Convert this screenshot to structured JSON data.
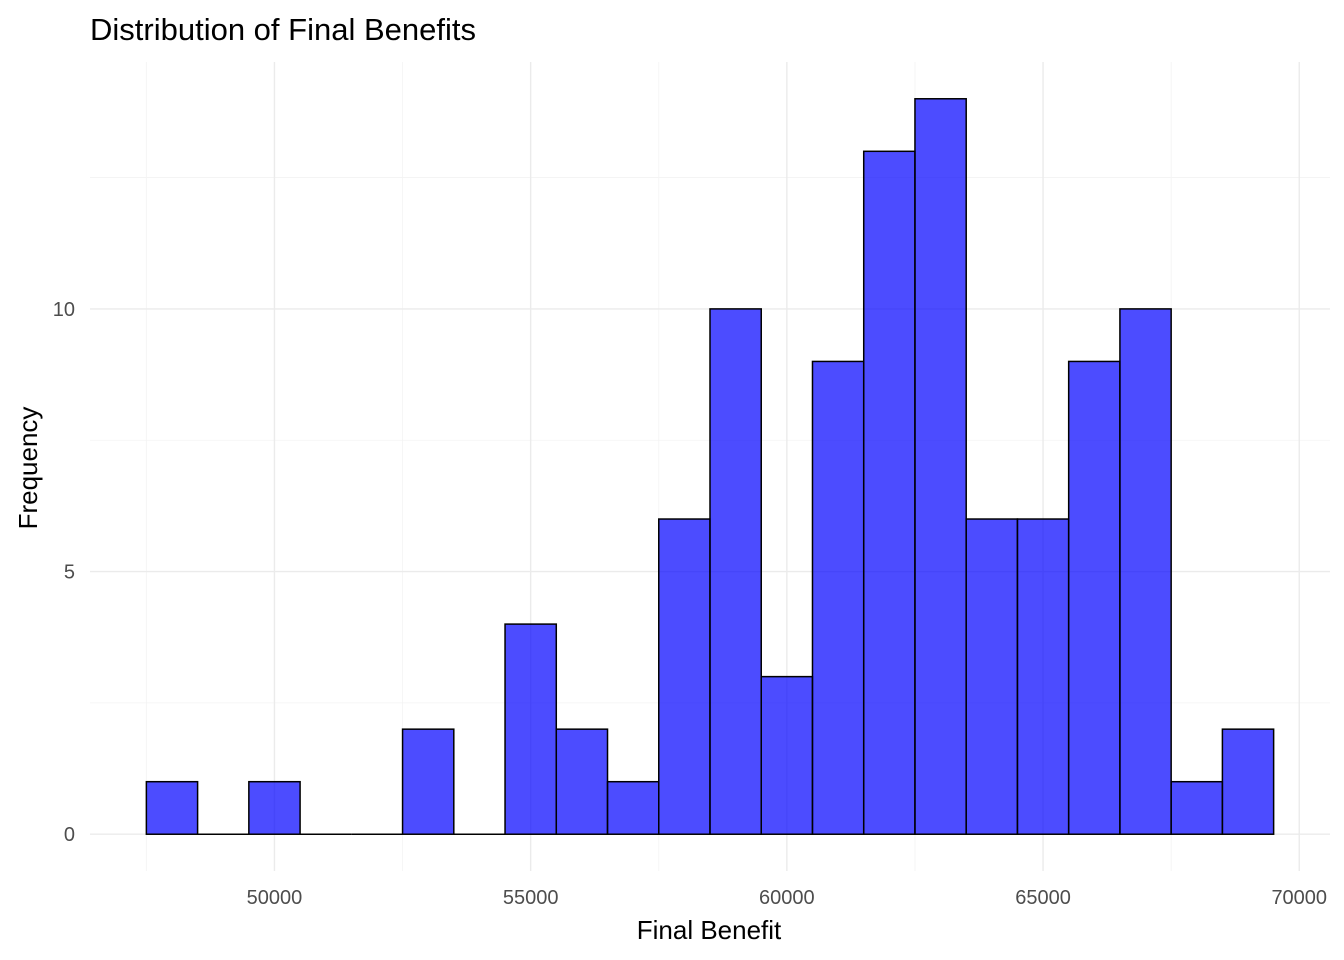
{
  "chart_data": {
    "type": "bar",
    "title": "Distribution of Final Benefits",
    "xlabel": "Final Benefit",
    "ylabel": "Frequency",
    "bin_width": 1000,
    "bins": [
      {
        "start": 47500,
        "end": 48500,
        "count": 1
      },
      {
        "start": 48500,
        "end": 49500,
        "count": 0
      },
      {
        "start": 49500,
        "end": 50500,
        "count": 1
      },
      {
        "start": 50500,
        "end": 51500,
        "count": 0
      },
      {
        "start": 51500,
        "end": 52500,
        "count": 0
      },
      {
        "start": 52500,
        "end": 53500,
        "count": 2
      },
      {
        "start": 53500,
        "end": 54500,
        "count": 0
      },
      {
        "start": 54500,
        "end": 55500,
        "count": 4
      },
      {
        "start": 55500,
        "end": 56500,
        "count": 2
      },
      {
        "start": 56500,
        "end": 57500,
        "count": 1
      },
      {
        "start": 57500,
        "end": 58500,
        "count": 6
      },
      {
        "start": 58500,
        "end": 59500,
        "count": 10
      },
      {
        "start": 59500,
        "end": 60500,
        "count": 3
      },
      {
        "start": 60500,
        "end": 61500,
        "count": 9
      },
      {
        "start": 61500,
        "end": 62500,
        "count": 13
      },
      {
        "start": 62500,
        "end": 63500,
        "count": 14
      },
      {
        "start": 63500,
        "end": 64500,
        "count": 6
      },
      {
        "start": 64500,
        "end": 65500,
        "count": 6
      },
      {
        "start": 65500,
        "end": 66500,
        "count": 9
      },
      {
        "start": 66500,
        "end": 67500,
        "count": 10
      },
      {
        "start": 67500,
        "end": 68500,
        "count": 1
      },
      {
        "start": 68500,
        "end": 69500,
        "count": 2
      }
    ],
    "xlim": [
      46400,
      70600
    ],
    "ylim": [
      -0.7,
      14.7
    ],
    "x_ticks": [
      50000,
      55000,
      60000,
      65000,
      70000
    ],
    "x_tick_labels": [
      "50000",
      "55000",
      "60000",
      "65000",
      "70000"
    ],
    "y_ticks": [
      0,
      5,
      10
    ],
    "y_tick_labels": [
      "0",
      "5",
      "10"
    ],
    "grid": true,
    "legend": "none",
    "fill_color": "#0000FF",
    "fill_opacity": 0.7,
    "outline_color": "#000000"
  }
}
